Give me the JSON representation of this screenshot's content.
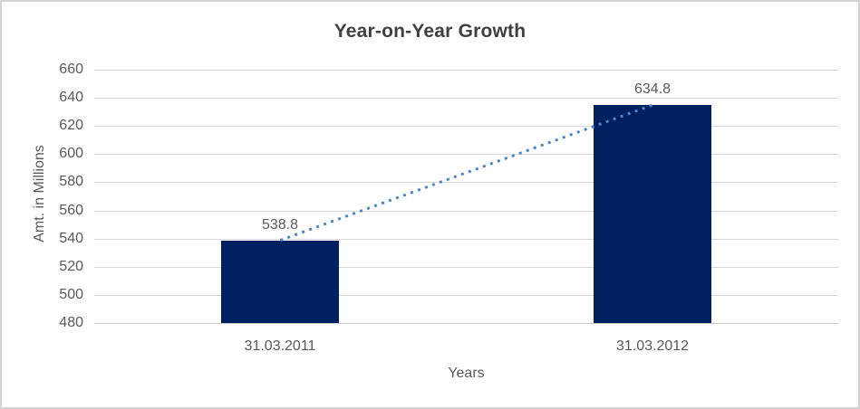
{
  "chart_data": {
    "type": "bar",
    "title": "Year-on-Year Growth",
    "categories": [
      "31.03.2011",
      "31.03.2012"
    ],
    "values": [
      538.8,
      634.8
    ],
    "data_labels": [
      "538.8",
      "634.8"
    ],
    "xlabel": "Years",
    "ylabel": "Amt. in Millions",
    "ylim": [
      480,
      660
    ],
    "yticks": [
      660,
      640,
      620,
      600,
      580,
      560,
      540,
      520,
      500,
      480
    ],
    "grid": true,
    "legend": "none",
    "trendline": {
      "type": "linear",
      "style": "dotted"
    },
    "colors": {
      "bar": "#002060",
      "trendline": "#4A86C8",
      "gridline": "#D9D9D9",
      "axis_line": "#C9C9C9",
      "title_text": "#404040",
      "label_text": "#595959",
      "border": "#D4D4D4"
    }
  }
}
